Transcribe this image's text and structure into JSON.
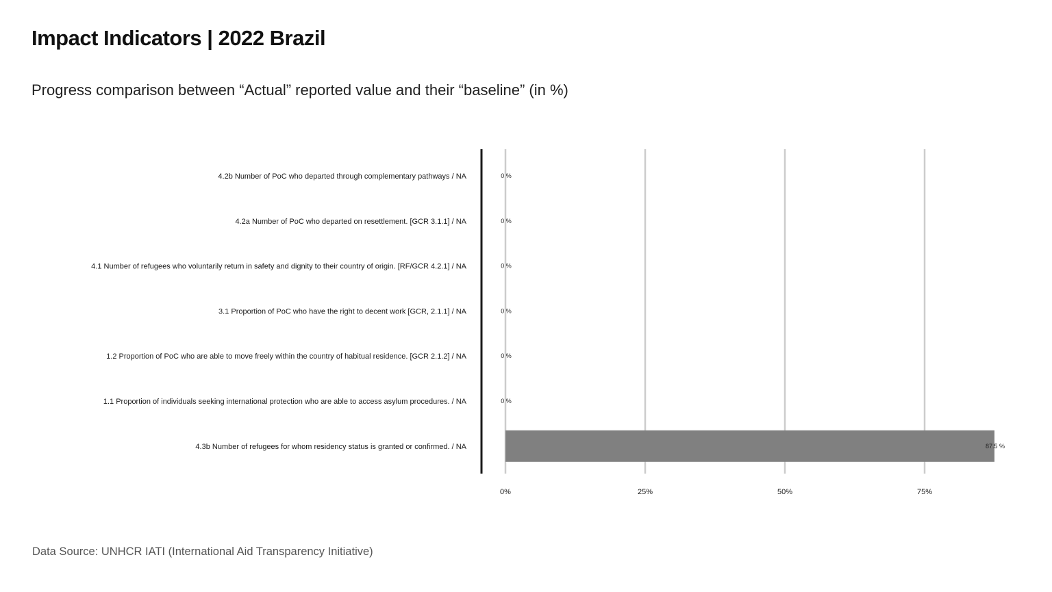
{
  "title": "Impact Indicators | 2022 Brazil",
  "subtitle": "Progress comparison between “Actual” reported value and their “baseline” (in %)",
  "source": "Data Source: UNHCR IATI (International Aid Transparency Initiative)",
  "chart_data": {
    "type": "bar",
    "orientation": "horizontal",
    "categories": [
      "4.2b Number of PoC who departed through complementary pathways / NA",
      "4.2a Number of PoC who departed on resettlement. [GCR 3.1.1] / NA",
      "4.1 Number of refugees who voluntarily return in safety and dignity to their country of origin. [RF/GCR 4.2.1] / NA",
      "3.1 Proportion of PoC who have the right to decent work [GCR, 2.1.1] / NA",
      "1.2 Proportion of PoC who are able to move freely within the country of habitual residence. [GCR 2.1.2] / NA",
      "1.1 Proportion of individuals seeking international protection who are able to access asylum procedures. / NA",
      "4.3b Number of refugees for whom residency status is granted or confirmed. / NA"
    ],
    "values": [
      0,
      0,
      0,
      0,
      0,
      0,
      87.5
    ],
    "data_labels": [
      "0 %",
      "0 %",
      "0 %",
      "0 %",
      "0 %",
      "0 %",
      "87.5 %"
    ],
    "x_ticks": [
      0,
      25,
      50,
      75
    ],
    "x_tick_labels": [
      "0%",
      "25%",
      "50%",
      "75%"
    ],
    "xlim": [
      0,
      100
    ],
    "grid": true,
    "bar_color": "#808080",
    "grid_color": "#cccccc",
    "axis_color": "#1a1a1a"
  }
}
